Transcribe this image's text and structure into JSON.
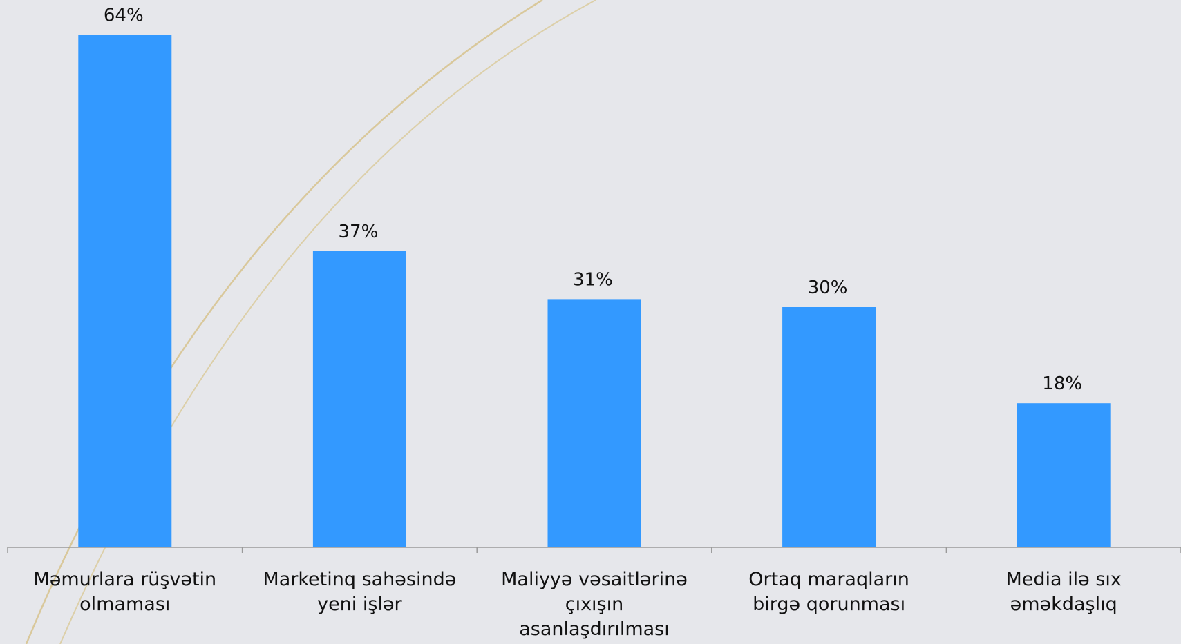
{
  "chart_data": {
    "type": "bar",
    "categories": [
      "Məmurlara rüşvətin\nolmaması",
      "Marketinq sahəsində\nyeni işlər",
      "Maliyyə vəsaitlərinə\nçıxışın\nasanlaşdırılması",
      "Ortaq maraqların\nbirgə qorunması",
      "Media ilə sıx\nəməkdaşlıq"
    ],
    "values": [
      64,
      37,
      31,
      30,
      18
    ],
    "value_labels": [
      "64%",
      "37%",
      "31%",
      "30%",
      "18%"
    ],
    "color": "#3399ff"
  }
}
